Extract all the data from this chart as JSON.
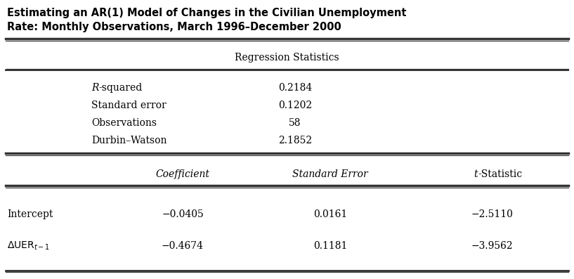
{
  "title_line1": "Estimating an AR(1) Model of Changes in the Civilian Unemployment",
  "title_line2": "Rate: Monthly Observations, March 1996–December 2000",
  "regression_header": "Regression Statistics",
  "reg_stats_labels": [
    "R-squared",
    "Standard error",
    "Observations",
    "Durbin–Watson"
  ],
  "reg_stats_values": [
    "0.2184",
    "0.1202",
    "58",
    "2.1852"
  ],
  "coef_headers": [
    "Coefficient",
    "Standard Error",
    "t-Statistic"
  ],
  "row_labels": [
    "Intercept",
    "ΔUER"
  ],
  "row_coefs": [
    "−0.0405",
    "−0.4674"
  ],
  "row_se": [
    "0.0161",
    "0.1181"
  ],
  "row_tstat": [
    "−2.5110",
    "−3.9562"
  ],
  "bg_color": "#ffffff",
  "text_color": "#000000",
  "line_color": "#333333"
}
